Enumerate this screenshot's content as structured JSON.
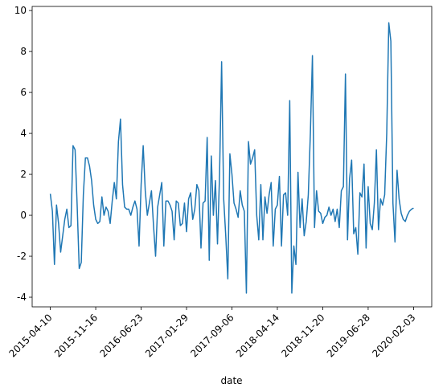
{
  "chart_data": {
    "type": "line",
    "xlabel": "date",
    "color": "#1f77b4",
    "categories": [
      "2015-04-10",
      null,
      null,
      null,
      null,
      null,
      null,
      null,
      null,
      null,
      null,
      null,
      null,
      null,
      null,
      null,
      null,
      null,
      null,
      null,
      null,
      null,
      "2015-11-16",
      null,
      null,
      null,
      null,
      null,
      null,
      null,
      null,
      null,
      null,
      null,
      null,
      null,
      null,
      null,
      null,
      null,
      null,
      null,
      null,
      null,
      "2016-06-23",
      null,
      null,
      null,
      null,
      null,
      null,
      null,
      null,
      null,
      null,
      null,
      null,
      null,
      null,
      null,
      null,
      null,
      null,
      null,
      null,
      null,
      "2017-01-29",
      null,
      null,
      null,
      null,
      null,
      null,
      null,
      null,
      null,
      null,
      null,
      null,
      null,
      null,
      null,
      null,
      null,
      null,
      null,
      null,
      null,
      "2017-09-06",
      null,
      null,
      null,
      null,
      null,
      null,
      null,
      null,
      null,
      null,
      null,
      null,
      null,
      null,
      null,
      null,
      null,
      null,
      null,
      null,
      null,
      "2018-04-14",
      null,
      null,
      null,
      null,
      null,
      null,
      null,
      null,
      null,
      null,
      null,
      null,
      null,
      null,
      null,
      null,
      null,
      null,
      null,
      null,
      null,
      "2018-11-20",
      null,
      null,
      null,
      null,
      null,
      null,
      null,
      null,
      null,
      null,
      null,
      null,
      null,
      null,
      null,
      null,
      null,
      null,
      null,
      null,
      null,
      "2019-06-28",
      null,
      null,
      null,
      null,
      null,
      null,
      null,
      null,
      null,
      null,
      null,
      null,
      null,
      null,
      null,
      null,
      null,
      null,
      null,
      null,
      null,
      "2020-02-03"
    ],
    "values": [
      1.05,
      0.2,
      -2.4,
      0.5,
      -0.4,
      -1.8,
      -1.0,
      -0.2,
      0.3,
      -0.6,
      -0.5,
      3.4,
      3.2,
      0.5,
      -2.6,
      -2.3,
      1.0,
      2.8,
      2.8,
      2.4,
      1.7,
      0.5,
      -0.2,
      -0.4,
      -0.3,
      0.9,
      0.0,
      0.4,
      0.2,
      -0.4,
      0.7,
      1.6,
      0.8,
      3.6,
      4.7,
      1.5,
      0.4,
      0.3,
      0.3,
      0.0,
      0.4,
      0.7,
      0.3,
      -1.5,
      1.5,
      3.4,
      1.2,
      0.0,
      0.6,
      1.2,
      -0.5,
      -2.0,
      0.4,
      1.0,
      1.6,
      -1.5,
      0.7,
      0.7,
      0.5,
      0.2,
      -1.2,
      0.7,
      0.6,
      -0.5,
      -0.4,
      0.6,
      -0.8,
      0.8,
      1.1,
      -0.2,
      0.3,
      1.5,
      1.2,
      -1.6,
      0.6,
      0.7,
      3.8,
      -2.2,
      2.9,
      0.0,
      1.7,
      -1.4,
      2.0,
      7.5,
      0.8,
      -1.0,
      -3.1,
      3.0,
      2.0,
      0.6,
      0.3,
      -0.1,
      1.2,
      0.5,
      0.2,
      -3.8,
      3.6,
      2.5,
      2.8,
      3.2,
      0.0,
      -1.2,
      1.5,
      -1.2,
      0.9,
      0.1,
      1.0,
      1.6,
      -1.5,
      0.3,
      0.5,
      1.9,
      -1.5,
      1.0,
      1.1,
      0.0,
      5.6,
      -3.8,
      -1.5,
      -2.4,
      2.1,
      -0.6,
      0.8,
      -1.0,
      -0.3,
      1.0,
      4.0,
      7.8,
      -0.6,
      1.2,
      0.2,
      0.1,
      -0.4,
      -0.1,
      0.0,
      0.4,
      0.0,
      0.3,
      -0.3,
      0.3,
      -0.6,
      1.2,
      1.4,
      6.9,
      -1.2,
      1.8,
      2.7,
      -0.9,
      -0.6,
      -1.9,
      1.1,
      0.9,
      2.5,
      -1.6,
      1.4,
      -0.4,
      -0.7,
      0.6,
      3.2,
      -0.7,
      0.8,
      0.5,
      1.0,
      4.0,
      9.4,
      8.5,
      0.6,
      -1.3,
      2.2,
      0.8,
      0.1,
      -0.2,
      -0.3,
      0.0,
      0.2,
      0.3,
      0.35
    ],
    "ylim": [
      -4.47,
      10.2
    ],
    "yticks": [
      -4,
      -2,
      0,
      2,
      4,
      6,
      8,
      10
    ]
  }
}
